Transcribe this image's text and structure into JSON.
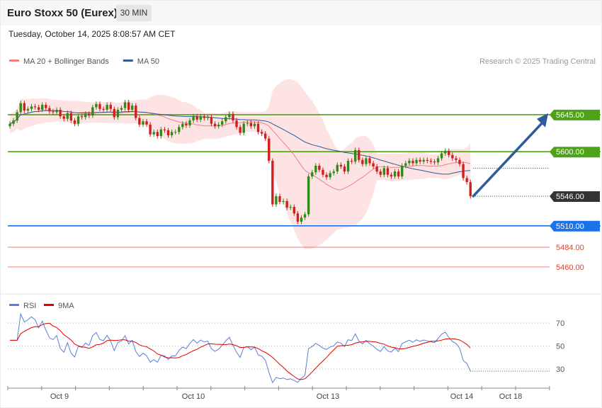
{
  "header": {
    "title": "Euro Stoxx 50 (Eurex)",
    "timeframe": "30 MIN",
    "datetime": "Tuesday, October 14, 2025 8:08:57 AM CET"
  },
  "chart_data": {
    "type": "candlestick",
    "legend": [
      {
        "label": "MA 20 + Bollinger Bands",
        "color": "#f08080"
      },
      {
        "label": "MA 50",
        "color": "#2e5b99"
      }
    ],
    "credit": "Research © 2025 Trading Central",
    "price_range": [
      5453,
      5700
    ],
    "levels": [
      {
        "label": "5645.00",
        "value": 5645,
        "color": "#4ea21a",
        "style": "solid"
      },
      {
        "label": "5600.00",
        "value": 5600,
        "color": "#4ea21a",
        "style": "solid"
      },
      {
        "label": "5546.00",
        "value": 5546,
        "color": "#333333",
        "style": "dotted"
      },
      {
        "label": "5510.00",
        "value": 5510,
        "color": "#1a73e8",
        "style": "solid"
      },
      {
        "label": "5484.00",
        "value": 5484,
        "color": "#e8503a",
        "style": "thin"
      },
      {
        "label": "5460.00",
        "value": 5460,
        "color": "#e8503a",
        "style": "thin"
      }
    ],
    "forecast_arrow": {
      "from": 5546,
      "to": 5645,
      "color": "#2e5b99"
    },
    "x_ticks": [
      "Oct 9",
      "Oct 10",
      "Oct 13",
      "Oct 14",
      "Oct 18"
    ],
    "candles_close": [
      5634,
      5638,
      5648,
      5659,
      5650,
      5652,
      5655,
      5654,
      5651,
      5657,
      5653,
      5649,
      5648,
      5651,
      5643,
      5640,
      5647,
      5638,
      5634,
      5643,
      5642,
      5646,
      5644,
      5654,
      5658,
      5652,
      5651,
      5657,
      5652,
      5642,
      5651,
      5653,
      5660,
      5651,
      5656,
      5641,
      5633,
      5637,
      5633,
      5621,
      5624,
      5619,
      5627,
      5626,
      5620,
      5624,
      5624,
      5630,
      5634,
      5632,
      5638,
      5643,
      5639,
      5643,
      5641,
      5642,
      5634,
      5631,
      5633,
      5637,
      5642,
      5646,
      5638,
      5630,
      5623,
      5634,
      5635,
      5631,
      5634,
      5624,
      5622,
      5616,
      5589,
      5536,
      5546,
      5539,
      5540,
      5532,
      5533,
      5525,
      5515,
      5520,
      5524,
      5570,
      5575,
      5583,
      5578,
      5572,
      5569,
      5574,
      5576,
      5584,
      5582,
      5576,
      5589,
      5588,
      5602,
      5590,
      5585,
      5592,
      5586,
      5582,
      5576,
      5572,
      5580,
      5572,
      5570,
      5576,
      5570,
      5583,
      5586,
      5589,
      5586,
      5590,
      5588,
      5590,
      5589,
      5588,
      5587,
      5592,
      5598,
      5601,
      5596,
      5592,
      5590,
      5585,
      5568,
      5563,
      5546
    ],
    "rsi": {
      "name": "RSI",
      "color": "#5a7fd6",
      "ma_name": "9MA",
      "ma_color": "#e00000",
      "levels": [
        70,
        50,
        30
      ],
      "range": [
        15,
        80
      ]
    }
  },
  "icons": {
    "legend_swatch": "line-swatch-icon"
  }
}
